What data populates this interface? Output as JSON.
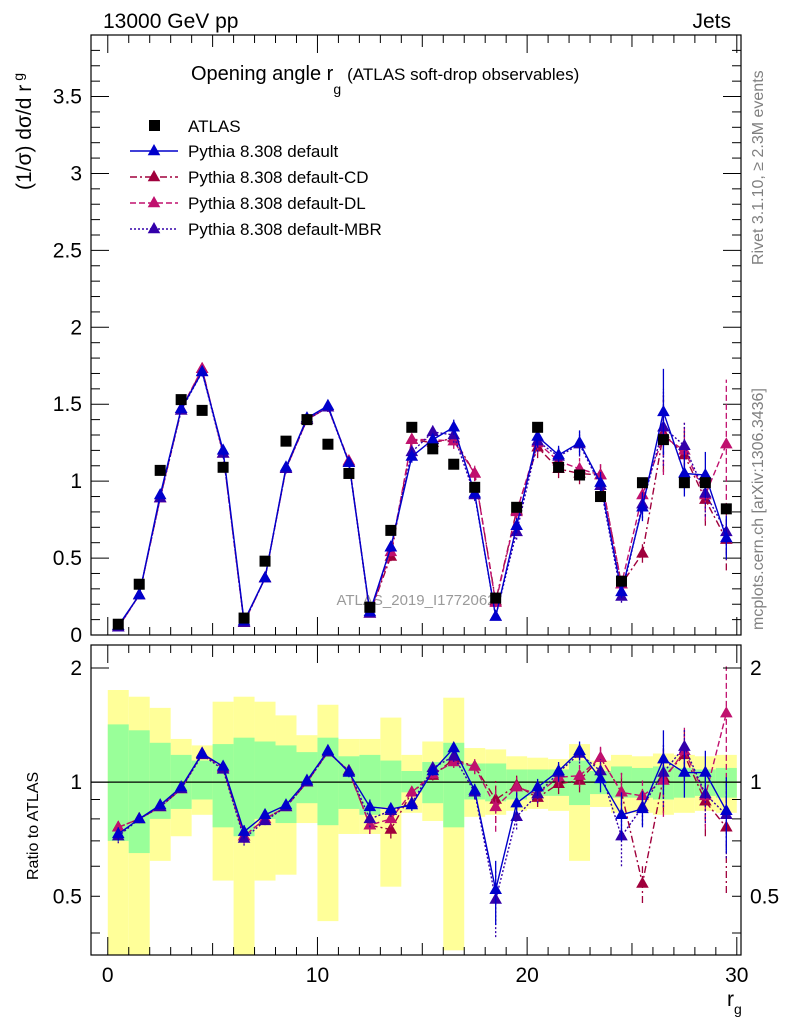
{
  "header": {
    "left": "13000 GeV pp",
    "right": "Jets"
  },
  "side_labels": {
    "rivet": "Rivet 3.1.10, ≥ 2.3M events",
    "mcplots": "mcplots.cern.ch [arXiv:1306.3436]"
  },
  "watermark": "ATLAS_2019_I1772062",
  "chart_data": [
    {
      "type": "line",
      "panel": "main",
      "title": "Opening angle r",
      "title_sub": "g",
      "title_suffix": "(ATLAS soft-drop observables)",
      "ylabel": "(1/σ) dσ/d r",
      "ylabel_sub": "g",
      "xlim": [
        -0.8,
        30.2
      ],
      "ylim": [
        0,
        3.9
      ],
      "yticks": [
        0,
        0.5,
        1,
        1.5,
        2,
        2.5,
        3,
        3.5
      ],
      "ytick_labels": [
        "0",
        "0.5",
        "1",
        "1.5",
        "2",
        "2.5",
        "3",
        "3.5"
      ],
      "legend": "top-left",
      "x": [
        0.5,
        1.5,
        2.5,
        3.5,
        4.5,
        5.5,
        6.5,
        7.5,
        8.5,
        9.5,
        10.5,
        11.5,
        12.5,
        13.5,
        14.5,
        15.5,
        16.5,
        17.5,
        18.5,
        19.5,
        20.5,
        21.5,
        22.5,
        23.5,
        24.5,
        25.5,
        26.5,
        27.5,
        28.5,
        29.5
      ],
      "data": {
        "name": "ATLAS",
        "values": [
          0.07,
          0.33,
          1.07,
          1.53,
          1.46,
          1.09,
          0.11,
          0.48,
          1.26,
          1.4,
          1.24,
          1.05,
          0.18,
          0.68,
          1.35,
          1.21,
          1.11,
          0.96,
          0.24,
          0.83,
          1.35,
          1.09,
          1.04,
          0.9,
          0.35,
          0.99,
          1.27,
          0.99,
          0.99,
          0.82
        ]
      },
      "series": [
        {
          "name": "Pythia 8.308 default",
          "color": "#0000cc",
          "dash": "solid",
          "values": [
            0.06,
            0.26,
            0.91,
            1.47,
            1.71,
            1.2,
            0.09,
            0.37,
            1.09,
            1.41,
            1.49,
            1.12,
            0.15,
            0.57,
            1.16,
            1.27,
            1.35,
            0.92,
            0.12,
            0.71,
            1.29,
            1.17,
            1.25,
            0.99,
            0.28,
            0.83,
            1.45,
            1.05,
            1.04,
            0.63
          ],
          "errors": [
            0.005,
            0.01,
            0.02,
            0.02,
            0.03,
            0.03,
            0.01,
            0.02,
            0.03,
            0.03,
            0.03,
            0.03,
            0.01,
            0.03,
            0.04,
            0.04,
            0.05,
            0.04,
            0.02,
            0.05,
            0.07,
            0.06,
            0.08,
            0.07,
            0.04,
            0.09,
            0.28,
            0.15,
            0.15,
            0.14
          ]
        },
        {
          "name": "Pythia 8.308 default-CD",
          "color": "#a0003c",
          "dash": "dashdot",
          "values": [
            0.05,
            0.26,
            0.89,
            1.46,
            1.73,
            1.18,
            0.08,
            0.37,
            1.08,
            1.4,
            1.48,
            1.13,
            0.14,
            0.51,
            1.27,
            1.25,
            1.28,
            1.05,
            0.22,
            0.81,
            1.22,
            1.08,
            1.05,
            1.04,
            0.33,
            0.53,
            1.31,
            1.17,
            0.88,
            0.62
          ],
          "errors": [
            0.005,
            0.01,
            0.02,
            0.02,
            0.03,
            0.03,
            0.01,
            0.02,
            0.03,
            0.03,
            0.03,
            0.03,
            0.01,
            0.03,
            0.04,
            0.04,
            0.05,
            0.05,
            0.03,
            0.05,
            0.07,
            0.06,
            0.07,
            0.07,
            0.04,
            0.06,
            0.25,
            0.18,
            0.17,
            0.2
          ]
        },
        {
          "name": "Pythia 8.308 default-DL",
          "color": "#c0106e",
          "dash": "dashed",
          "values": [
            0.05,
            0.26,
            0.89,
            1.47,
            1.73,
            1.18,
            0.08,
            0.37,
            1.08,
            1.4,
            1.48,
            1.13,
            0.14,
            0.54,
            1.27,
            1.27,
            1.26,
            1.05,
            0.21,
            0.8,
            1.25,
            1.13,
            1.08,
            1.04,
            0.33,
            0.91,
            1.29,
            1.2,
            0.91,
            1.24
          ],
          "errors": [
            0.005,
            0.01,
            0.02,
            0.02,
            0.03,
            0.03,
            0.01,
            0.02,
            0.03,
            0.03,
            0.03,
            0.03,
            0.01,
            0.03,
            0.04,
            0.04,
            0.05,
            0.05,
            0.03,
            0.05,
            0.07,
            0.06,
            0.07,
            0.07,
            0.04,
            0.09,
            0.25,
            0.18,
            0.17,
            0.42
          ]
        },
        {
          "name": "Pythia 8.308 default-MBR",
          "color": "#3300aa",
          "dash": "dotted",
          "values": [
            0.05,
            0.26,
            0.89,
            1.46,
            1.71,
            1.18,
            0.08,
            0.37,
            1.08,
            1.4,
            1.48,
            1.12,
            0.14,
            0.57,
            1.19,
            1.32,
            1.3,
            0.91,
            0.12,
            0.67,
            1.26,
            1.16,
            1.24,
            0.97,
            0.25,
            0.85,
            1.35,
            1.23,
            0.92,
            0.67
          ],
          "errors": [
            0.005,
            0.01,
            0.02,
            0.02,
            0.03,
            0.03,
            0.01,
            0.02,
            0.03,
            0.03,
            0.03,
            0.03,
            0.01,
            0.03,
            0.04,
            0.04,
            0.05,
            0.04,
            0.02,
            0.05,
            0.07,
            0.06,
            0.08,
            0.07,
            0.04,
            0.09,
            0.25,
            0.15,
            0.15,
            0.14
          ]
        }
      ]
    },
    {
      "type": "line",
      "panel": "ratio",
      "ylabel": "Ratio to ATLAS",
      "xlabel": "r",
      "xlabel_sub": "g",
      "xlim": [
        -0.8,
        30.2
      ],
      "ylim": [
        0.35,
        2.3
      ],
      "yticks": [
        0.5,
        1,
        2
      ],
      "ytick_labels": [
        "0.5",
        "1",
        "2"
      ],
      "xticks": [
        0,
        10,
        20,
        30
      ],
      "xtick_labels": [
        "0",
        "10",
        "20",
        "30"
      ],
      "band_inner": [
        [
          0.7,
          1.42
        ],
        [
          0.65,
          1.37
        ],
        [
          0.8,
          1.27
        ],
        [
          0.85,
          1.18
        ],
        [
          0.9,
          1.14
        ],
        [
          0.76,
          1.26
        ],
        [
          0.72,
          1.31
        ],
        [
          0.8,
          1.28
        ],
        [
          0.78,
          1.25
        ],
        [
          0.88,
          1.2
        ],
        [
          0.77,
          1.31
        ],
        [
          0.85,
          1.17
        ],
        [
          0.82,
          1.18
        ],
        [
          0.86,
          1.14
        ],
        [
          0.94,
          1.07
        ],
        [
          0.88,
          1.13
        ],
        [
          0.76,
          1.27
        ],
        [
          0.9,
          1.12
        ],
        [
          0.89,
          1.12
        ],
        [
          0.9,
          1.08
        ],
        [
          0.92,
          1.08
        ],
        [
          0.92,
          1.08
        ],
        [
          0.87,
          1.14
        ],
        [
          0.93,
          1.07
        ],
        [
          0.91,
          1.1
        ],
        [
          0.91,
          1.09
        ],
        [
          0.9,
          1.1
        ],
        [
          0.91,
          1.09
        ],
        [
          0.92,
          1.08
        ],
        [
          0.91,
          1.09
        ]
      ],
      "band_outer": [
        [
          0.35,
          1.75
        ],
        [
          0.35,
          1.68
        ],
        [
          0.62,
          1.57
        ],
        [
          0.72,
          1.3
        ],
        [
          0.82,
          1.25
        ],
        [
          0.55,
          1.63
        ],
        [
          0.35,
          1.68
        ],
        [
          0.55,
          1.63
        ],
        [
          0.57,
          1.5
        ],
        [
          0.78,
          1.33
        ],
        [
          0.43,
          1.6
        ],
        [
          0.73,
          1.3
        ],
        [
          0.73,
          1.3
        ],
        [
          0.53,
          1.48
        ],
        [
          0.83,
          1.18
        ],
        [
          0.79,
          1.28
        ],
        [
          0.36,
          1.67
        ],
        [
          0.81,
          1.23
        ],
        [
          0.82,
          1.22
        ],
        [
          0.84,
          1.17
        ],
        [
          0.85,
          1.16
        ],
        [
          0.84,
          1.15
        ],
        [
          0.62,
          1.26
        ],
        [
          0.86,
          1.14
        ],
        [
          0.83,
          1.18
        ],
        [
          0.83,
          1.17
        ],
        [
          0.82,
          1.19
        ],
        [
          0.83,
          1.18
        ],
        [
          0.84,
          1.17
        ],
        [
          0.83,
          1.18
        ]
      ],
      "series": [
        {
          "name": "Pythia 8.308 default",
          "values": [
            0.73,
            0.8,
            0.87,
            0.97,
            1.19,
            1.1,
            0.74,
            0.82,
            0.87,
            1.01,
            1.21,
            1.06,
            0.86,
            0.85,
            0.87,
            1.07,
            1.23,
            0.95,
            0.52,
            0.88,
            0.97,
            1.07,
            1.21,
            1.02,
            0.82,
            0.85,
            1.15,
            1.06,
            1.06,
            0.84
          ],
          "errors": [
            0.03,
            0.02,
            0.02,
            0.02,
            0.02,
            0.02,
            0.03,
            0.02,
            0.02,
            0.02,
            0.02,
            0.03,
            0.04,
            0.03,
            0.03,
            0.03,
            0.04,
            0.04,
            0.1,
            0.06,
            0.05,
            0.06,
            0.07,
            0.08,
            0.12,
            0.09,
            0.22,
            0.15,
            0.15,
            0.19
          ]
        },
        {
          "name": "Pythia 8.308 default-CD",
          "values": [
            0.76,
            0.8,
            0.86,
            0.96,
            1.19,
            1.09,
            0.72,
            0.8,
            0.86,
            1.0,
            1.2,
            1.07,
            0.77,
            0.75,
            0.94,
            1.04,
            1.15,
            1.1,
            0.9,
            0.98,
            0.91,
            0.99,
            1.01,
            1.16,
            0.94,
            0.54,
            1.03,
            1.18,
            0.89,
            0.76
          ],
          "errors": [
            0.03,
            0.02,
            0.02,
            0.02,
            0.02,
            0.02,
            0.03,
            0.02,
            0.02,
            0.02,
            0.02,
            0.03,
            0.04,
            0.04,
            0.03,
            0.03,
            0.04,
            0.05,
            0.12,
            0.06,
            0.05,
            0.06,
            0.07,
            0.08,
            0.12,
            0.06,
            0.2,
            0.18,
            0.17,
            0.25
          ]
        },
        {
          "name": "Pythia 8.308 default-DL",
          "values": [
            0.76,
            0.8,
            0.86,
            0.96,
            1.19,
            1.09,
            0.72,
            0.8,
            0.86,
            1.0,
            1.2,
            1.07,
            0.77,
            0.8,
            0.94,
            1.05,
            1.13,
            1.1,
            0.86,
            0.97,
            0.93,
            1.03,
            1.04,
            1.16,
            0.94,
            0.92,
            1.01,
            1.21,
            0.92,
            1.52
          ],
          "errors": [
            0.03,
            0.02,
            0.02,
            0.02,
            0.02,
            0.02,
            0.03,
            0.02,
            0.02,
            0.02,
            0.02,
            0.03,
            0.04,
            0.04,
            0.03,
            0.03,
            0.04,
            0.05,
            0.12,
            0.06,
            0.05,
            0.06,
            0.07,
            0.08,
            0.12,
            0.09,
            0.2,
            0.18,
            0.17,
            0.5
          ]
        },
        {
          "name": "Pythia 8.308 default-MBR",
          "values": [
            0.72,
            0.8,
            0.86,
            0.96,
            1.18,
            1.08,
            0.71,
            0.79,
            0.86,
            1.0,
            1.2,
            1.07,
            0.8,
            0.84,
            0.88,
            1.09,
            1.17,
            0.94,
            0.49,
            0.81,
            0.93,
            1.06,
            1.19,
            1.07,
            0.72,
            0.86,
            1.06,
            1.24,
            0.93,
            0.82
          ],
          "errors": [
            0.03,
            0.02,
            0.02,
            0.02,
            0.02,
            0.02,
            0.03,
            0.02,
            0.02,
            0.02,
            0.02,
            0.03,
            0.04,
            0.03,
            0.03,
            0.03,
            0.04,
            0.04,
            0.1,
            0.06,
            0.05,
            0.06,
            0.07,
            0.08,
            0.12,
            0.09,
            0.2,
            0.15,
            0.15,
            0.19
          ]
        }
      ]
    }
  ]
}
